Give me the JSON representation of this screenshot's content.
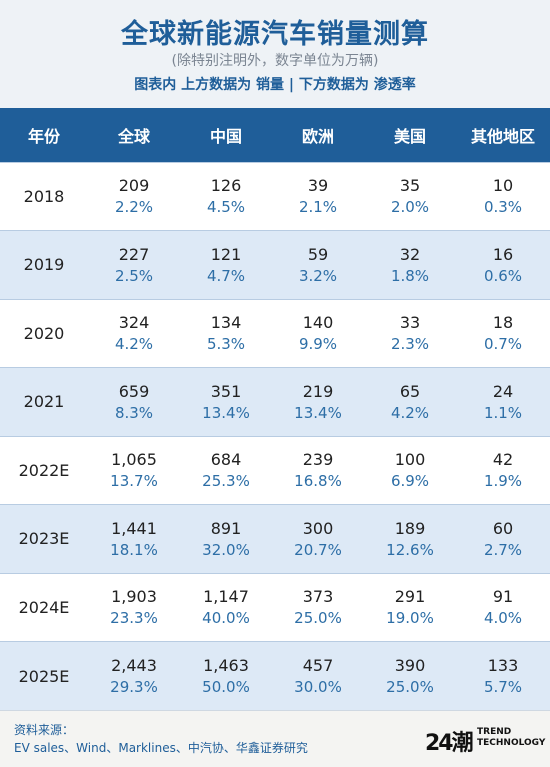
{
  "header": {
    "title": "全球新能源汽车销量测算",
    "subtitle": "(除特别注明外，数字单位为万辆)",
    "legend": "图表内  上方数据为 销量   |   下方数据为 渗透率"
  },
  "table": {
    "columns": [
      "年份",
      "全球",
      "中国",
      "欧洲",
      "美国",
      "其他地区"
    ],
    "rows": [
      {
        "year": "2018",
        "cells": [
          {
            "v": "209",
            "p": "2.2%"
          },
          {
            "v": "126",
            "p": "4.5%"
          },
          {
            "v": "39",
            "p": "2.1%"
          },
          {
            "v": "35",
            "p": "2.0%"
          },
          {
            "v": "10",
            "p": "0.3%"
          }
        ]
      },
      {
        "year": "2019",
        "cells": [
          {
            "v": "227",
            "p": "2.5%"
          },
          {
            "v": "121",
            "p": "4.7%"
          },
          {
            "v": "59",
            "p": "3.2%"
          },
          {
            "v": "32",
            "p": "1.8%"
          },
          {
            "v": "16",
            "p": "0.6%"
          }
        ]
      },
      {
        "year": "2020",
        "cells": [
          {
            "v": "324",
            "p": "4.2%"
          },
          {
            "v": "134",
            "p": "5.3%"
          },
          {
            "v": "140",
            "p": "9.9%"
          },
          {
            "v": "33",
            "p": "2.3%"
          },
          {
            "v": "18",
            "p": "0.7%"
          }
        ]
      },
      {
        "year": "2021",
        "cells": [
          {
            "v": "659",
            "p": "8.3%"
          },
          {
            "v": "351",
            "p": "13.4%"
          },
          {
            "v": "219",
            "p": "13.4%"
          },
          {
            "v": "65",
            "p": "4.2%"
          },
          {
            "v": "24",
            "p": "1.1%"
          }
        ]
      },
      {
        "year": "2022E",
        "cells": [
          {
            "v": "1,065",
            "p": "13.7%"
          },
          {
            "v": "684",
            "p": "25.3%"
          },
          {
            "v": "239",
            "p": "16.8%"
          },
          {
            "v": "100",
            "p": "6.9%"
          },
          {
            "v": "42",
            "p": "1.9%"
          }
        ]
      },
      {
        "year": "2023E",
        "cells": [
          {
            "v": "1,441",
            "p": "18.1%"
          },
          {
            "v": "891",
            "p": "32.0%"
          },
          {
            "v": "300",
            "p": "20.7%"
          },
          {
            "v": "189",
            "p": "12.6%"
          },
          {
            "v": "60",
            "p": "2.7%"
          }
        ]
      },
      {
        "year": "2024E",
        "cells": [
          {
            "v": "1,903",
            "p": "23.3%"
          },
          {
            "v": "1,147",
            "p": "40.0%"
          },
          {
            "v": "373",
            "p": "25.0%"
          },
          {
            "v": "291",
            "p": "19.0%"
          },
          {
            "v": "91",
            "p": "4.0%"
          }
        ]
      },
      {
        "year": "2025E",
        "cells": [
          {
            "v": "2,443",
            "p": "29.3%"
          },
          {
            "v": "1,463",
            "p": "50.0%"
          },
          {
            "v": "457",
            "p": "30.0%"
          },
          {
            "v": "390",
            "p": "25.0%"
          },
          {
            "v": "133",
            "p": "5.7%"
          }
        ]
      }
    ]
  },
  "footer": {
    "source_label": "资料来源：",
    "source_text": "EV sales、Wind、Marklines、中汽协、华鑫证券研究",
    "logo_mark": "24潮",
    "logo_line1": "TREND",
    "logo_line2": "TECHNOLOGY"
  }
}
